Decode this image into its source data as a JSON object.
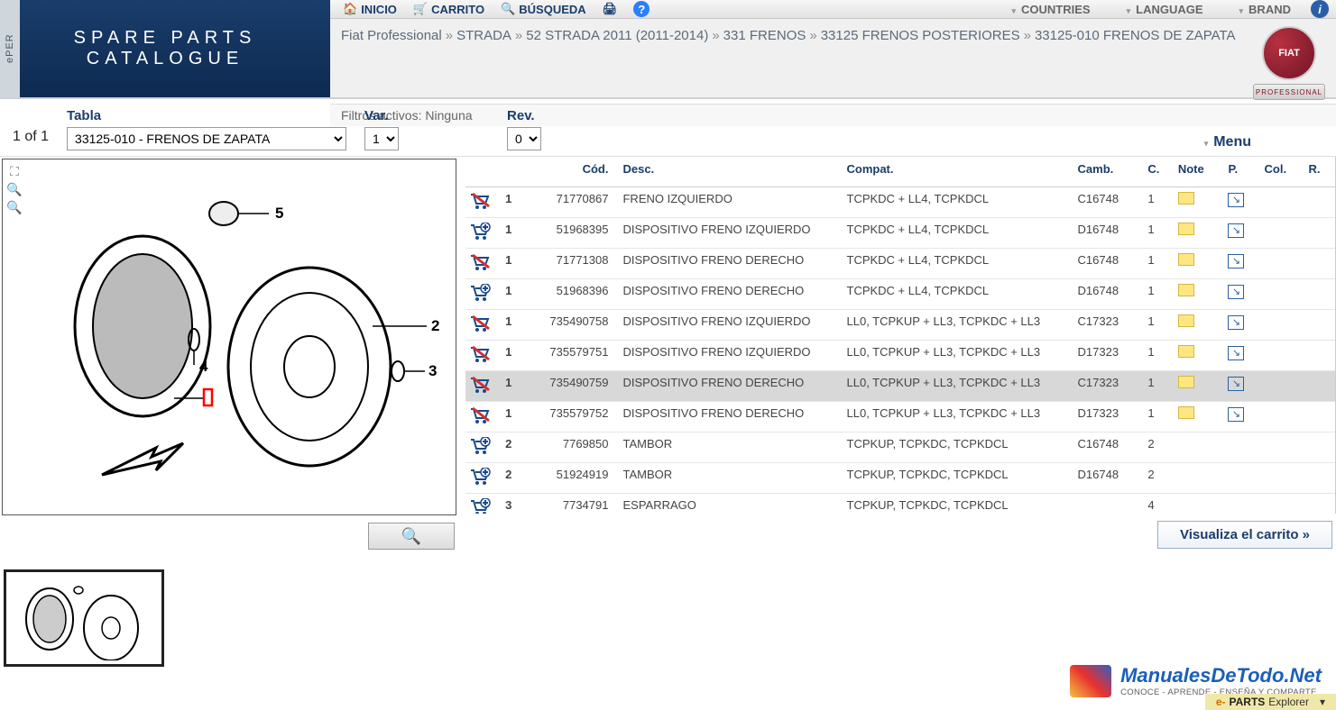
{
  "logo": {
    "line1": "SPARE PARTS",
    "line2": "CATALOGUE",
    "side": "ePER"
  },
  "nav": {
    "inicio": "INICIO",
    "carrito": "CARRITO",
    "busqueda": "BÚSQUEDA",
    "countries": "COUNTRIES",
    "language": "LANGUAGE",
    "brand": "BRAND"
  },
  "breadcrumb": {
    "items": [
      "Fiat Professional",
      "STRADA",
      "52 STRADA 2011 (2011-2014)",
      "331 FRENOS",
      "33125 FRENOS POSTERIORES",
      "33125-010 FRENOS DE ZAPATA"
    ]
  },
  "brand_logo_text": "FIAT",
  "brand_badge_text": "PROFESSIONAL",
  "filters_label": "Filtros activos:",
  "filters_value": "Ninguna",
  "selectors": {
    "page_indicator": "1 of 1",
    "tabla_label": "Tabla",
    "tabla_value": "33125-010 - FRENOS DE ZAPATA",
    "var_label": "Var.",
    "var_value": "1",
    "rev_label": "Rev.",
    "rev_value": "0",
    "menu_label": "Menu"
  },
  "diagram_callouts": [
    "5",
    "2",
    "4",
    "3"
  ],
  "table": {
    "columns": {
      "cod": "Cód.",
      "desc": "Desc.",
      "compat": "Compat.",
      "camb": "Camb.",
      "c": "C.",
      "note": "Note",
      "p": "P.",
      "col": "Col.",
      "r": "R."
    },
    "rows": [
      {
        "cart": "x",
        "pos": "1",
        "cod": "71770867",
        "desc": "FRENO IZQUIERDO",
        "compat": "TCPKDC + LL4, TCPKDCL",
        "camb": "C16748",
        "c": "1",
        "note": true,
        "p": true,
        "hl": false
      },
      {
        "cart": "add",
        "pos": "1",
        "cod": "51968395",
        "desc": "DISPOSITIVO FRENO IZQUIERDO",
        "compat": "TCPKDC + LL4, TCPKDCL",
        "camb": "D16748",
        "c": "1",
        "note": true,
        "p": true,
        "hl": false
      },
      {
        "cart": "x",
        "pos": "1",
        "cod": "71771308",
        "desc": "DISPOSITIVO FRENO DERECHO",
        "compat": "TCPKDC + LL4, TCPKDCL",
        "camb": "C16748",
        "c": "1",
        "note": true,
        "p": true,
        "hl": false
      },
      {
        "cart": "add",
        "pos": "1",
        "cod": "51968396",
        "desc": "DISPOSITIVO FRENO DERECHO",
        "compat": "TCPKDC + LL4, TCPKDCL",
        "camb": "D16748",
        "c": "1",
        "note": true,
        "p": true,
        "hl": false
      },
      {
        "cart": "x",
        "pos": "1",
        "cod": "735490758",
        "desc": "DISPOSITIVO FRENO IZQUIERDO",
        "compat": "LL0, TCPKUP + LL3, TCPKDC + LL3",
        "camb": "C17323",
        "c": "1",
        "note": true,
        "p": true,
        "hl": false
      },
      {
        "cart": "x",
        "pos": "1",
        "cod": "735579751",
        "desc": "DISPOSITIVO FRENO IZQUIERDO",
        "compat": "LL0, TCPKUP + LL3, TCPKDC + LL3",
        "camb": "D17323",
        "c": "1",
        "note": true,
        "p": true,
        "hl": false
      },
      {
        "cart": "x",
        "pos": "1",
        "cod": "735490759",
        "desc": "DISPOSITIVO FRENO DERECHO",
        "compat": "LL0, TCPKUP + LL3, TCPKDC + LL3",
        "camb": "C17323",
        "c": "1",
        "note": true,
        "p": true,
        "hl": true
      },
      {
        "cart": "x",
        "pos": "1",
        "cod": "735579752",
        "desc": "DISPOSITIVO FRENO DERECHO",
        "compat": "LL0, TCPKUP + LL3, TCPKDC + LL3",
        "camb": "D17323",
        "c": "1",
        "note": true,
        "p": true,
        "hl": false
      },
      {
        "cart": "add",
        "pos": "2",
        "cod": "7769850",
        "desc": "TAMBOR",
        "compat": "TCPKUP, TCPKDC, TCPKDCL",
        "camb": "C16748",
        "c": "2",
        "note": false,
        "p": false,
        "hl": false
      },
      {
        "cart": "add",
        "pos": "2",
        "cod": "51924919",
        "desc": "TAMBOR",
        "compat": "TCPKUP, TCPKDC, TCPKDCL",
        "camb": "D16748",
        "c": "2",
        "note": false,
        "p": false,
        "hl": false
      },
      {
        "cart": "add",
        "pos": "3",
        "cod": "7734791",
        "desc": "ESPARRAGO",
        "compat": "TCPKUP, TCPKDC, TCPKDCL",
        "camb": "",
        "c": "4",
        "note": false,
        "p": false,
        "hl": false
      }
    ]
  },
  "view_cart_label": "Visualiza el carrito »",
  "footer": {
    "brand_main": "ManualesDeTodo.Net",
    "brand_sub": "CONOCE - APRENDE - ENSEÑA Y COMPARTE",
    "bar_prefix": "e-",
    "bar_main": "PARTS",
    "bar_suffix": "Explorer"
  }
}
